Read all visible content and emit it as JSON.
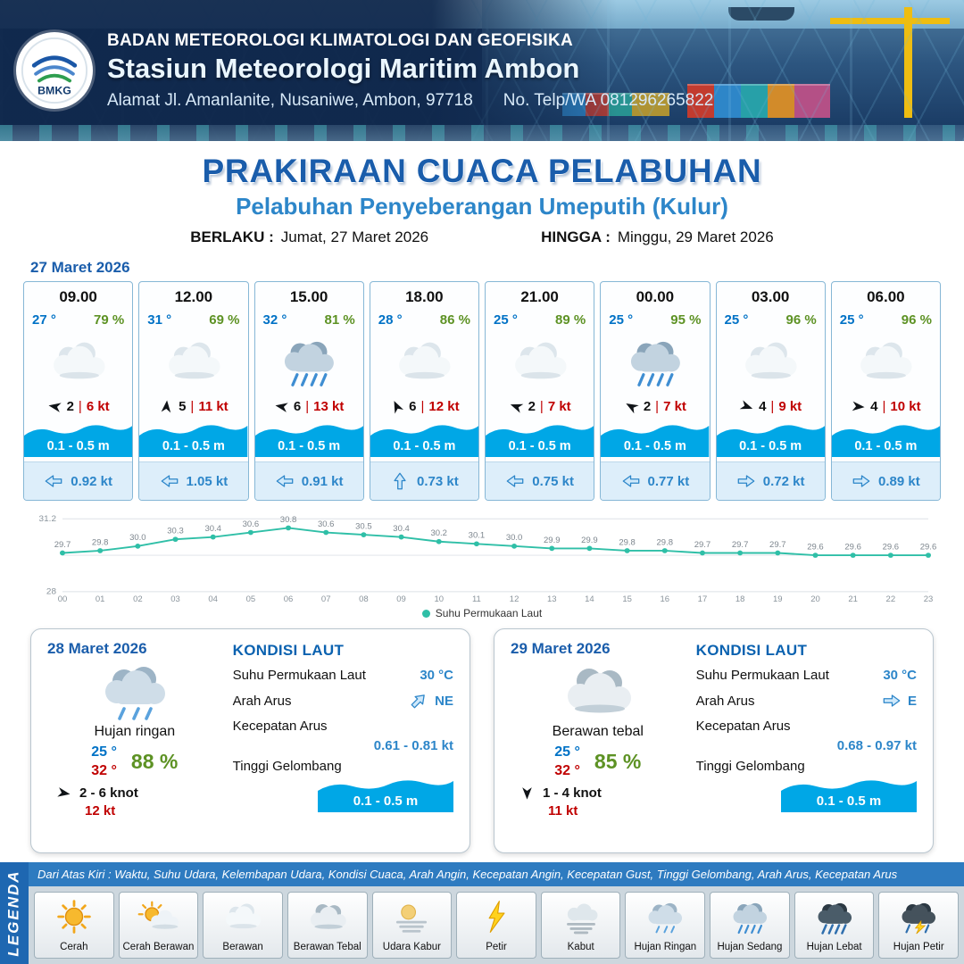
{
  "header": {
    "logo_text": "BMKG",
    "org": "BADAN METEOROLOGI KLIMATOLOGI DAN GEOFISIKA",
    "station": "Stasiun Meteorologi Maritim Ambon",
    "address": "Alamat Jl. Amanlanite, Nusaniwe, Ambon, 97718",
    "phone": "No. Telp/WA  081296265822"
  },
  "title": {
    "main": "PRAKIRAAN CUACA PELABUHAN",
    "sub": "Pelabuhan Penyeberangan Umeputih (Kulur)",
    "valid_from_label": "BERLAKU :",
    "valid_from": "Jumat, 27 Maret 2026",
    "valid_to_label": "HINGGA :",
    "valid_to": "Minggu, 29 Maret 2026"
  },
  "forecast": {
    "date": "27 Maret 2026",
    "divider": "|",
    "cards": [
      {
        "time": "09.00",
        "temp": "27 °",
        "humidity": "79 %",
        "icon": "berawan",
        "wind_deg": 190,
        "wind_speed": "2",
        "gust": "6 kt",
        "wave": "0.1 - 0.5 m",
        "current_deg": 180,
        "current": "0.92 kt"
      },
      {
        "time": "12.00",
        "temp": "31 °",
        "humidity": "69 %",
        "icon": "berawan",
        "wind_deg": 275,
        "wind_speed": "5",
        "gust": "11 kt",
        "wave": "0.1 - 0.5 m",
        "current_deg": 180,
        "current": "1.05 kt"
      },
      {
        "time": "15.00",
        "temp": "32 °",
        "humidity": "81 %",
        "icon": "hujan-sedang",
        "wind_deg": 190,
        "wind_speed": "6",
        "gust": "13 kt",
        "wave": "0.1 - 0.5 m",
        "current_deg": 180,
        "current": "0.91 kt"
      },
      {
        "time": "18.00",
        "temp": "28 °",
        "humidity": "86 %",
        "icon": "berawan",
        "wind_deg": 245,
        "wind_speed": "6",
        "gust": "12 kt",
        "wave": "0.1 - 0.5 m",
        "current_deg": 270,
        "current": "0.73 kt"
      },
      {
        "time": "21.00",
        "temp": "25 °",
        "humidity": "89 %",
        "icon": "berawan",
        "wind_deg": 200,
        "wind_speed": "2",
        "gust": "7 kt",
        "wave": "0.1 - 0.5 m",
        "current_deg": 180,
        "current": "0.75 kt"
      },
      {
        "time": "00.00",
        "temp": "25 °",
        "humidity": "95 %",
        "icon": "hujan-sedang",
        "wind_deg": 210,
        "wind_speed": "2",
        "gust": "7 kt",
        "wave": "0.1 - 0.5 m",
        "current_deg": 180,
        "current": "0.77 kt"
      },
      {
        "time": "03.00",
        "temp": "25 °",
        "humidity": "96 %",
        "icon": "berawan",
        "wind_deg": 20,
        "wind_speed": "4",
        "gust": "9 kt",
        "wave": "0.1 - 0.5 m",
        "current_deg": 0,
        "current": "0.72 kt"
      },
      {
        "time": "06.00",
        "temp": "25 °",
        "humidity": "96 %",
        "icon": "berawan",
        "wind_deg": 5,
        "wind_speed": "4",
        "gust": "10 kt",
        "wave": "0.1 - 0.5 m",
        "current_deg": 0,
        "current": "0.89 kt"
      }
    ]
  },
  "chart_data": {
    "type": "line",
    "x": [
      "00",
      "01",
      "02",
      "03",
      "04",
      "05",
      "06",
      "07",
      "08",
      "09",
      "10",
      "11",
      "12",
      "13",
      "14",
      "15",
      "16",
      "17",
      "18",
      "19",
      "20",
      "21",
      "22",
      "23"
    ],
    "series": [
      {
        "name": "Suhu Permukaan Laut",
        "values": [
          29.7,
          29.8,
          30.0,
          30.3,
          30.4,
          30.6,
          30.8,
          30.6,
          30.5,
          30.4,
          30.2,
          30.1,
          30.0,
          29.9,
          29.9,
          29.8,
          29.8,
          29.7,
          29.7,
          29.7,
          29.6,
          29.6,
          29.6,
          29.6
        ]
      }
    ],
    "ylim": [
      28,
      31.2
    ],
    "yticks": [
      28,
      31.2
    ],
    "gridlines": [
      28,
      29.6,
      31.2
    ],
    "legend_position": "bottom",
    "line_color": "#2fbfa7",
    "grid": true,
    "title": "",
    "xlabel": "",
    "ylabel": ""
  },
  "outlook": {
    "cards": [
      {
        "date": "28 Maret 2026",
        "icon": "hujan-ringan",
        "condition": "Hujan ringan",
        "temp_min": "25 °",
        "temp_max": "32 °",
        "humidity": "88 %",
        "wind_deg": 10,
        "wind_range": "2  - 6 knot",
        "gust": "12 kt",
        "sea_title": "KONDISI LAUT",
        "sst_label": "Suhu Permukaan Laut",
        "sst": "30 °C",
        "current_dir_label": "Arah Arus",
        "current_dir": "NE",
        "current_deg": -45,
        "current_speed_label": "Kecepatan Arus",
        "current_speed": "0.61 - 0.81 kt",
        "wave_label": "Tinggi Gelombang",
        "wave": "0.1 - 0.5 m"
      },
      {
        "date": "29 Maret 2026",
        "icon": "berawan-tebal",
        "condition": "Berawan tebal",
        "temp_min": "25 °",
        "temp_max": "32 °",
        "humidity": "85 %",
        "wind_deg": 90,
        "wind_range": "1  - 4 knot",
        "gust": "11 kt",
        "sea_title": "KONDISI LAUT",
        "sst_label": "Suhu Permukaan Laut",
        "sst": "30 °C",
        "current_dir_label": "Arah Arus",
        "current_dir": "E",
        "current_deg": 0,
        "current_speed_label": "Kecepatan Arus",
        "current_speed": "0.68 - 0.97 kt",
        "wave_label": "Tinggi Gelombang",
        "wave": "0.1 - 0.5 m"
      }
    ]
  },
  "legend": {
    "title": "LEGENDA",
    "note": "Dari Atas Kiri : Waktu, Suhu Udara, Kelembapan Udara, Kondisi Cuaca, Arah Angin, Kecepatan Angin, Kecepatan Gust, Tinggi Gelombang, Arah Arus, Kecepatan Arus",
    "items": [
      {
        "icon": "cerah",
        "label": "Cerah"
      },
      {
        "icon": "cerah-berawan",
        "label": "Cerah Berawan"
      },
      {
        "icon": "berawan",
        "label": "Berawan"
      },
      {
        "icon": "berawan-tebal",
        "label": "Berawan Tebal"
      },
      {
        "icon": "udara-kabur",
        "label": "Udara Kabur"
      },
      {
        "icon": "petir",
        "label": "Petir"
      },
      {
        "icon": "kabut",
        "label": "Kabut"
      },
      {
        "icon": "hujan-ringan",
        "label": "Hujan Ringan"
      },
      {
        "icon": "hujan-sedang",
        "label": "Hujan Sedang"
      },
      {
        "icon": "hujan-lebat",
        "label": "Hujan Lebat"
      },
      {
        "icon": "hujan-petir",
        "label": "Hujan Petir"
      }
    ]
  },
  "colors": {
    "header_navy": "#16365f",
    "accent_blue": "#1a5dab",
    "subtitle_blue": "#2d86c9",
    "temp_blue": "#0072c6",
    "humidity_green": "#5d9224",
    "gust_red": "#c00000",
    "wave_blue": "#00a7e6",
    "current_blue": "#2d86c9",
    "line_teal": "#2fbfa7",
    "legend_blue": "#2e7bc0"
  }
}
